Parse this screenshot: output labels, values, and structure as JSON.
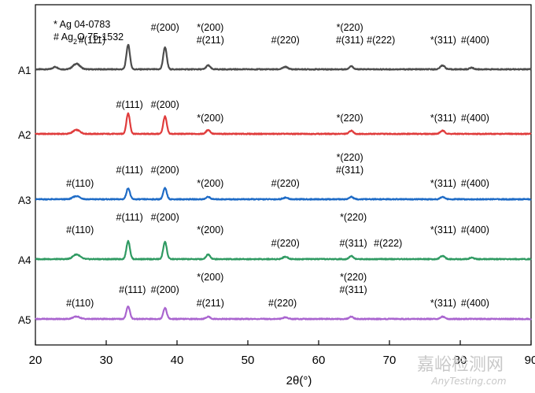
{
  "chart_data": {
    "type": "line",
    "title": "",
    "xlabel": "2θ(°)",
    "ylabel": "",
    "xlim": [
      20,
      90
    ],
    "x_ticks": [
      20,
      30,
      40,
      50,
      60,
      70,
      80,
      90
    ],
    "legend": {
      "ag_line": "* Ag 04-0783",
      "ag2o_line": {
        "prefix": "# Ag",
        "subscript": "2",
        "suffix": "O 75-1532"
      }
    },
    "series": [
      {
        "name": "A1",
        "color": "#4d4d4d",
        "peaks": [
          {
            "x": 22.8,
            "h": 3,
            "w": 0.5
          },
          {
            "x": 25.8,
            "h": 7,
            "w": 0.7
          },
          {
            "x": 33.1,
            "h": 31,
            "w": 0.35
          },
          {
            "x": 38.3,
            "h": 28,
            "w": 0.35
          },
          {
            "x": 44.4,
            "h": 5,
            "w": 0.4
          },
          {
            "x": 55.3,
            "h": 3,
            "w": 0.5
          },
          {
            "x": 64.6,
            "h": 4,
            "w": 0.4
          },
          {
            "x": 77.5,
            "h": 5,
            "w": 0.45
          },
          {
            "x": 81.6,
            "h": 2,
            "w": 0.4
          }
        ],
        "labels": [
          {
            "text": "#(111)",
            "x": 28.0,
            "row": 1
          },
          {
            "text": "#(200)",
            "x": 38.3,
            "row": 0
          },
          {
            "text": "*(200)",
            "x": 44.7,
            "row": 0
          },
          {
            "text": "#(211)",
            "x": 44.7,
            "row": 1
          },
          {
            "text": "#(220)",
            "x": 55.3,
            "row": 1
          },
          {
            "text": "*(220)",
            "x": 64.4,
            "row": 0
          },
          {
            "text": "#(311)",
            "x": 64.4,
            "row": 1
          },
          {
            "text": "#(222)",
            "x": 68.8,
            "row": 1
          },
          {
            "text": "*(311)",
            "x": 77.6,
            "row": 1
          },
          {
            "text": "#(400)",
            "x": 82.1,
            "row": 1
          }
        ]
      },
      {
        "name": "A2",
        "color": "#e03c3c",
        "peaks": [
          {
            "x": 25.8,
            "h": 5,
            "w": 0.7
          },
          {
            "x": 33.1,
            "h": 26,
            "w": 0.35
          },
          {
            "x": 38.3,
            "h": 22,
            "w": 0.35
          },
          {
            "x": 44.4,
            "h": 5,
            "w": 0.4
          },
          {
            "x": 64.6,
            "h": 4,
            "w": 0.4
          },
          {
            "x": 77.5,
            "h": 4,
            "w": 0.45
          }
        ],
        "labels": [
          {
            "text": "#(111)",
            "x": 33.3,
            "row": 1
          },
          {
            "text": "#(200)",
            "x": 38.3,
            "row": 1
          },
          {
            "text": "*(200)",
            "x": 44.7,
            "row": 2
          },
          {
            "text": "*(220)",
            "x": 64.4,
            "row": 2
          },
          {
            "text": "*(311)",
            "x": 77.6,
            "row": 2
          },
          {
            "text": "#(400)",
            "x": 82.1,
            "row": 2
          }
        ]
      },
      {
        "name": "A3",
        "color": "#1e6bc6",
        "peaks": [
          {
            "x": 25.8,
            "h": 4,
            "w": 0.7
          },
          {
            "x": 33.1,
            "h": 14,
            "w": 0.35
          },
          {
            "x": 38.3,
            "h": 14,
            "w": 0.35
          },
          {
            "x": 44.4,
            "h": 3,
            "w": 0.4
          },
          {
            "x": 55.3,
            "h": 2,
            "w": 0.5
          },
          {
            "x": 64.6,
            "h": 3,
            "w": 0.4
          },
          {
            "x": 77.5,
            "h": 3,
            "w": 0.45
          }
        ],
        "labels": [
          {
            "text": "#(110)",
            "x": 26.3,
            "row": 2
          },
          {
            "text": "#(111)",
            "x": 33.3,
            "row": 1
          },
          {
            "text": "#(200)",
            "x": 38.3,
            "row": 1
          },
          {
            "text": "*(200)",
            "x": 44.7,
            "row": 2
          },
          {
            "text": "#(220)",
            "x": 55.3,
            "row": 2
          },
          {
            "text": "*(220)",
            "x": 64.4,
            "row": 0
          },
          {
            "text": "#(311)",
            "x": 64.4,
            "row": 1
          },
          {
            "text": "*(311)",
            "x": 77.6,
            "row": 2
          },
          {
            "text": "#(400)",
            "x": 82.1,
            "row": 2
          }
        ]
      },
      {
        "name": "A4",
        "color": "#2f9a62",
        "peaks": [
          {
            "x": 25.8,
            "h": 6,
            "w": 0.7
          },
          {
            "x": 33.1,
            "h": 23,
            "w": 0.35
          },
          {
            "x": 38.3,
            "h": 22,
            "w": 0.35
          },
          {
            "x": 44.4,
            "h": 6,
            "w": 0.4
          },
          {
            "x": 55.3,
            "h": 3,
            "w": 0.5
          },
          {
            "x": 64.6,
            "h": 4,
            "w": 0.4
          },
          {
            "x": 77.5,
            "h": 4,
            "w": 0.45
          },
          {
            "x": 81.6,
            "h": 2,
            "w": 0.4
          }
        ],
        "labels": [
          {
            "text": "#(110)",
            "x": 26.3,
            "row": 1
          },
          {
            "text": "#(111)",
            "x": 33.3,
            "row": 0
          },
          {
            "text": "#(200)",
            "x": 38.3,
            "row": 0
          },
          {
            "text": "*(200)",
            "x": 44.7,
            "row": 1
          },
          {
            "text": "#(220)",
            "x": 55.3,
            "row": 2
          },
          {
            "text": "*(220)",
            "x": 64.9,
            "row": 0
          },
          {
            "text": "#(311)",
            "x": 64.9,
            "row": 2
          },
          {
            "text": "#(222)",
            "x": 69.8,
            "row": 2
          },
          {
            "text": "*(311)",
            "x": 77.6,
            "row": 1
          },
          {
            "text": "#(400)",
            "x": 82.1,
            "row": 1
          }
        ]
      },
      {
        "name": "A5",
        "color": "#a964cf",
        "peaks": [
          {
            "x": 25.8,
            "h": 3,
            "w": 0.7
          },
          {
            "x": 33.1,
            "h": 16,
            "w": 0.35
          },
          {
            "x": 38.3,
            "h": 14,
            "w": 0.35
          },
          {
            "x": 44.4,
            "h": 3,
            "w": 0.4
          },
          {
            "x": 55.3,
            "h": 2,
            "w": 0.5
          },
          {
            "x": 64.6,
            "h": 3,
            "w": 0.4
          },
          {
            "x": 77.5,
            "h": 3,
            "w": 0.45
          }
        ],
        "labels": [
          {
            "text": "#(110)",
            "x": 26.3,
            "row": 2
          },
          {
            "text": "#(111)",
            "x": 33.7,
            "row": 1
          },
          {
            "text": "#(200)",
            "x": 38.3,
            "row": 1
          },
          {
            "text": "*(200)",
            "x": 44.7,
            "row": 0
          },
          {
            "text": "#(211)",
            "x": 44.7,
            "row": 2
          },
          {
            "text": "#(220)",
            "x": 54.9,
            "row": 2
          },
          {
            "text": "*(220)",
            "x": 64.9,
            "row": 0
          },
          {
            "text": "#(311)",
            "x": 64.9,
            "row": 1
          },
          {
            "text": "*(311)",
            "x": 77.6,
            "row": 2
          },
          {
            "text": "#(400)",
            "x": 82.1,
            "row": 2
          }
        ]
      }
    ]
  },
  "watermark": {
    "cn_text": "嘉峪检测网",
    "en_text": "AnyTesting.com",
    "color": "#c8c8c8"
  }
}
